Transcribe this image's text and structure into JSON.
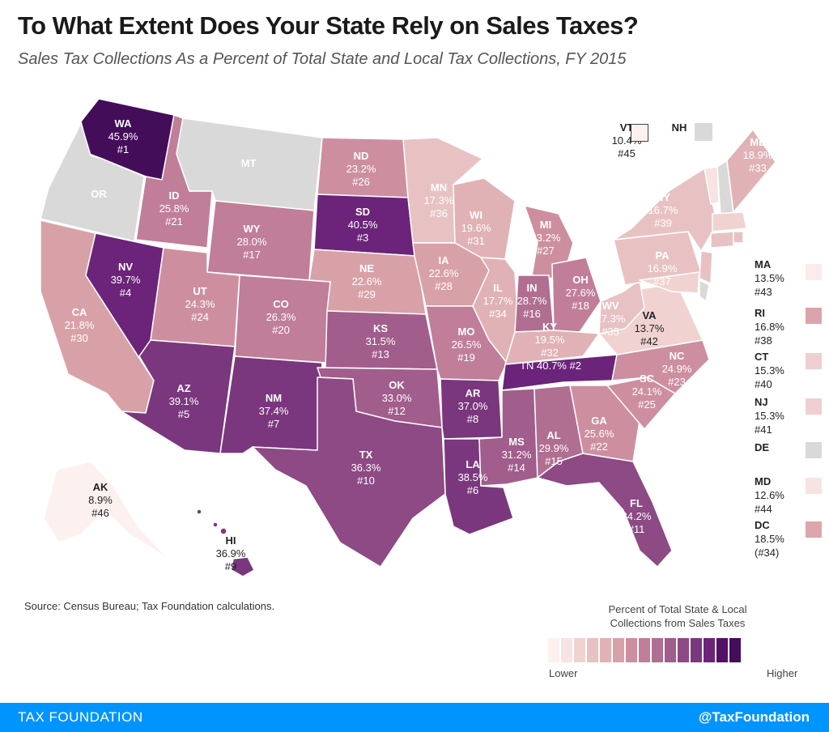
{
  "title": "To What Extent Does Your State Rely on Sales Taxes?",
  "subtitle": "Sales Tax Collections As a Percent of Total State and Local Tax Collections, FY 2015",
  "source": "Source: Census Bureau; Tax Foundation calculations.",
  "legend": {
    "title_line1": "Percent of Total State & Local",
    "title_line2": "Collections from Sales Taxes",
    "low": "Lower",
    "high": "Higher",
    "colors": [
      "#fcf1ef",
      "#f7e4e2",
      "#f0d2d1",
      "#e8c2c3",
      "#e0b2b5",
      "#d8a1a8",
      "#cd8fa0",
      "#c07e98",
      "#b06e91",
      "#a15d8b",
      "#8d4a84",
      "#7a377e",
      "#6b2479",
      "#551168",
      "#440d5a"
    ]
  },
  "footer": {
    "left": "TAX FOUNDATION",
    "right": "@TaxFoundation"
  },
  "colors": {
    "no_tax": "#d9d9d9",
    "footer": "#0094FF",
    "border": "#ffffff"
  },
  "states": {
    "WA": {
      "abbr": "WA",
      "pct": "45.9%",
      "rank": "#1"
    },
    "OR": {
      "abbr": "OR"
    },
    "CA": {
      "abbr": "CA",
      "pct": "21.8%",
      "rank": "#30"
    },
    "ID": {
      "abbr": "ID",
      "pct": "25.8%",
      "rank": "#21"
    },
    "NV": {
      "abbr": "NV",
      "pct": "39.7%",
      "rank": "#4"
    },
    "MT": {
      "abbr": "MT"
    },
    "WY": {
      "abbr": "WY",
      "pct": "28.0%",
      "rank": "#17"
    },
    "UT": {
      "abbr": "UT",
      "pct": "24.3%",
      "rank": "#24"
    },
    "AZ": {
      "abbr": "AZ",
      "pct": "39.1%",
      "rank": "#5"
    },
    "CO": {
      "abbr": "CO",
      "pct": "26.3%",
      "rank": "#20"
    },
    "NM": {
      "abbr": "NM",
      "pct": "37.4%",
      "rank": "#7"
    },
    "ND": {
      "abbr": "ND",
      "pct": "23.2%",
      "rank": "#26"
    },
    "SD": {
      "abbr": "SD",
      "pct": "40.5%",
      "rank": "#3"
    },
    "NE": {
      "abbr": "NE",
      "pct": "22.6%",
      "rank": "#29"
    },
    "KS": {
      "abbr": "KS",
      "pct": "31.5%",
      "rank": "#13"
    },
    "OK": {
      "abbr": "OK",
      "pct": "33.0%",
      "rank": "#12"
    },
    "TX": {
      "abbr": "TX",
      "pct": "36.3%",
      "rank": "#10"
    },
    "MN": {
      "abbr": "MN",
      "pct": "17.3%",
      "rank": "#36"
    },
    "IA": {
      "abbr": "IA",
      "pct": "22.6%",
      "rank": "#28"
    },
    "MO": {
      "abbr": "MO",
      "pct": "26.5%",
      "rank": "#19"
    },
    "AR": {
      "abbr": "AR",
      "pct": "37.0%",
      "rank": "#8"
    },
    "LA": {
      "abbr": "LA",
      "pct": "38.5%",
      "rank": "#6"
    },
    "WI": {
      "abbr": "WI",
      "pct": "19.6%",
      "rank": "#31"
    },
    "IL": {
      "abbr": "IL",
      "pct": "17.7%",
      "rank": "#34"
    },
    "MI": {
      "abbr": "MI",
      "pct": "23.2%",
      "rank": "#27"
    },
    "IN": {
      "abbr": "IN",
      "pct": "28.7%",
      "rank": "#16"
    },
    "OH": {
      "abbr": "OH",
      "pct": "27.6%",
      "rank": "#18"
    },
    "KY": {
      "abbr": "KY",
      "pct": "19.5%",
      "rank": "#32"
    },
    "TN": {
      "abbr": "TN",
      "pct": "40.7%",
      "rank": "#2"
    },
    "MS": {
      "abbr": "MS",
      "pct": "31.2%",
      "rank": "#14"
    },
    "AL": {
      "abbr": "AL",
      "pct": "29.9%",
      "rank": "#15"
    },
    "GA": {
      "abbr": "GA",
      "pct": "25.6%",
      "rank": "#22"
    },
    "FL": {
      "abbr": "FL",
      "pct": "34.2%",
      "rank": "#11"
    },
    "SC": {
      "abbr": "SC",
      "pct": "24.1%",
      "rank": "#25"
    },
    "NC": {
      "abbr": "NC",
      "pct": "24.9%",
      "rank": "#23"
    },
    "VA": {
      "abbr": "VA",
      "pct": "13.7%",
      "rank": "#42"
    },
    "WV": {
      "abbr": "WV",
      "pct": "17.3%",
      "rank": "#35"
    },
    "PA": {
      "abbr": "PA",
      "pct": "16.9%",
      "rank": "#37"
    },
    "NY": {
      "abbr": "NY",
      "pct": "16.7%",
      "rank": "#39"
    },
    "ME": {
      "abbr": "ME",
      "pct": "18.9%",
      "rank": "#33"
    },
    "VT": {
      "abbr": "VT",
      "pct": "10.4%",
      "rank": "#45"
    },
    "NH": {
      "abbr": "NH"
    },
    "MA": {
      "abbr": "MA",
      "pct": "13.5%",
      "rank": "#43"
    },
    "RI": {
      "abbr": "RI",
      "pct": "16.8%",
      "rank": "#38"
    },
    "CT": {
      "abbr": "CT",
      "pct": "15.3%",
      "rank": "#40"
    },
    "NJ": {
      "abbr": "NJ",
      "pct": "15.3%",
      "rank": "#41"
    },
    "DE": {
      "abbr": "DE"
    },
    "MD": {
      "abbr": "MD",
      "pct": "12.6%",
      "rank": "#44"
    },
    "DC": {
      "abbr": "DC",
      "pct": "18.5%",
      "rank": "(#34)"
    },
    "AK": {
      "abbr": "AK",
      "pct": "8.9%",
      "rank": "#46"
    },
    "HI": {
      "abbr": "HI",
      "pct": "36.9%",
      "rank": "#9"
    }
  }
}
